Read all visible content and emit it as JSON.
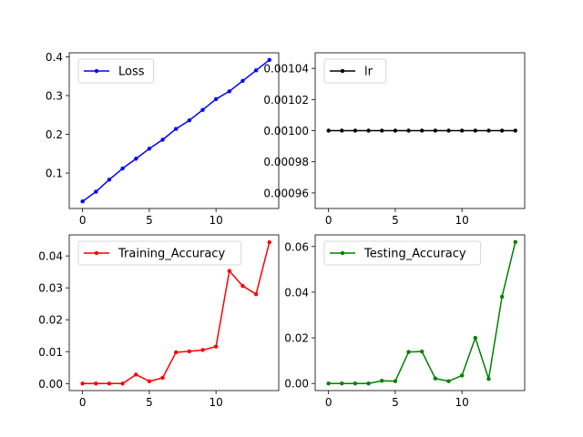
{
  "chart_data": [
    {
      "type": "line",
      "x": [
        0,
        1,
        2,
        3,
        4,
        5,
        6,
        7,
        8,
        9,
        10,
        11,
        12,
        13,
        14
      ],
      "series": [
        {
          "name": "Loss",
          "color": "#0000ff",
          "values": [
            0.027,
            0.052,
            0.083,
            0.112,
            0.137,
            0.163,
            0.186,
            0.214,
            0.236,
            0.263,
            0.291,
            0.311,
            0.338,
            0.365,
            0.392
          ]
        }
      ],
      "xlim": [
        -1,
        14.7
      ],
      "ylim": [
        0.0087,
        0.4103
      ],
      "xticks": [
        0,
        5,
        10
      ],
      "yticks": [
        0.1,
        0.2,
        0.3,
        0.4
      ],
      "ytick_labels": [
        "0.1",
        "0.2",
        "0.3",
        "0.4"
      ],
      "legend_loc": "upper-left"
    },
    {
      "type": "line",
      "x": [
        0,
        1,
        2,
        3,
        4,
        5,
        6,
        7,
        8,
        9,
        10,
        11,
        12,
        13,
        14
      ],
      "series": [
        {
          "name": "lr",
          "color": "#000000",
          "values": [
            0.001,
            0.001,
            0.001,
            0.001,
            0.001,
            0.001,
            0.001,
            0.001,
            0.001,
            0.001,
            0.001,
            0.001,
            0.001,
            0.001,
            0.001
          ]
        }
      ],
      "xlim": [
        -1,
        14.7
      ],
      "ylim": [
        0.00095,
        0.00105
      ],
      "xticks": [
        0,
        5,
        10
      ],
      "yticks": [
        0.00096,
        0.00098,
        0.001,
        0.00102,
        0.00104
      ],
      "ytick_labels": [
        "0.00096",
        "0.00098",
        "0.00100",
        "0.00102",
        "0.00104"
      ],
      "legend_loc": "upper-left"
    },
    {
      "type": "line",
      "x": [
        0,
        1,
        2,
        3,
        4,
        5,
        6,
        7,
        8,
        9,
        10,
        11,
        12,
        13,
        14
      ],
      "series": [
        {
          "name": "Training_Accuracy",
          "color": "#ff0000",
          "values": [
            0.0,
            0.0,
            0.0,
            0.0,
            0.0028,
            0.0007,
            0.0018,
            0.0098,
            0.0101,
            0.0105,
            0.0116,
            0.0353,
            0.0306,
            0.028,
            0.0443
          ]
        }
      ],
      "xlim": [
        -1,
        14.7
      ],
      "ylim": [
        -0.0022,
        0.0466
      ],
      "xticks": [
        0,
        5,
        10
      ],
      "yticks": [
        0.0,
        0.01,
        0.02,
        0.03,
        0.04
      ],
      "ytick_labels": [
        "0.00",
        "0.01",
        "0.02",
        "0.03",
        "0.04"
      ],
      "legend_loc": "upper-left"
    },
    {
      "type": "line",
      "x": [
        0,
        1,
        2,
        3,
        4,
        5,
        6,
        7,
        8,
        9,
        10,
        11,
        12,
        13,
        14
      ],
      "series": [
        {
          "name": "Testing_Accuracy",
          "color": "#008000",
          "values": [
            0.0,
            0.0,
            0.0,
            0.0,
            0.0012,
            0.001,
            0.0138,
            0.014,
            0.0022,
            0.001,
            0.0035,
            0.02,
            0.002,
            0.038,
            0.062
          ]
        }
      ],
      "xlim": [
        -1,
        14.7
      ],
      "ylim": [
        -0.0031,
        0.0651
      ],
      "xticks": [
        0,
        5,
        10
      ],
      "yticks": [
        0.0,
        0.02,
        0.04,
        0.06
      ],
      "ytick_labels": [
        "0.00",
        "0.02",
        "0.04",
        "0.06"
      ],
      "legend_loc": "upper-left"
    }
  ]
}
